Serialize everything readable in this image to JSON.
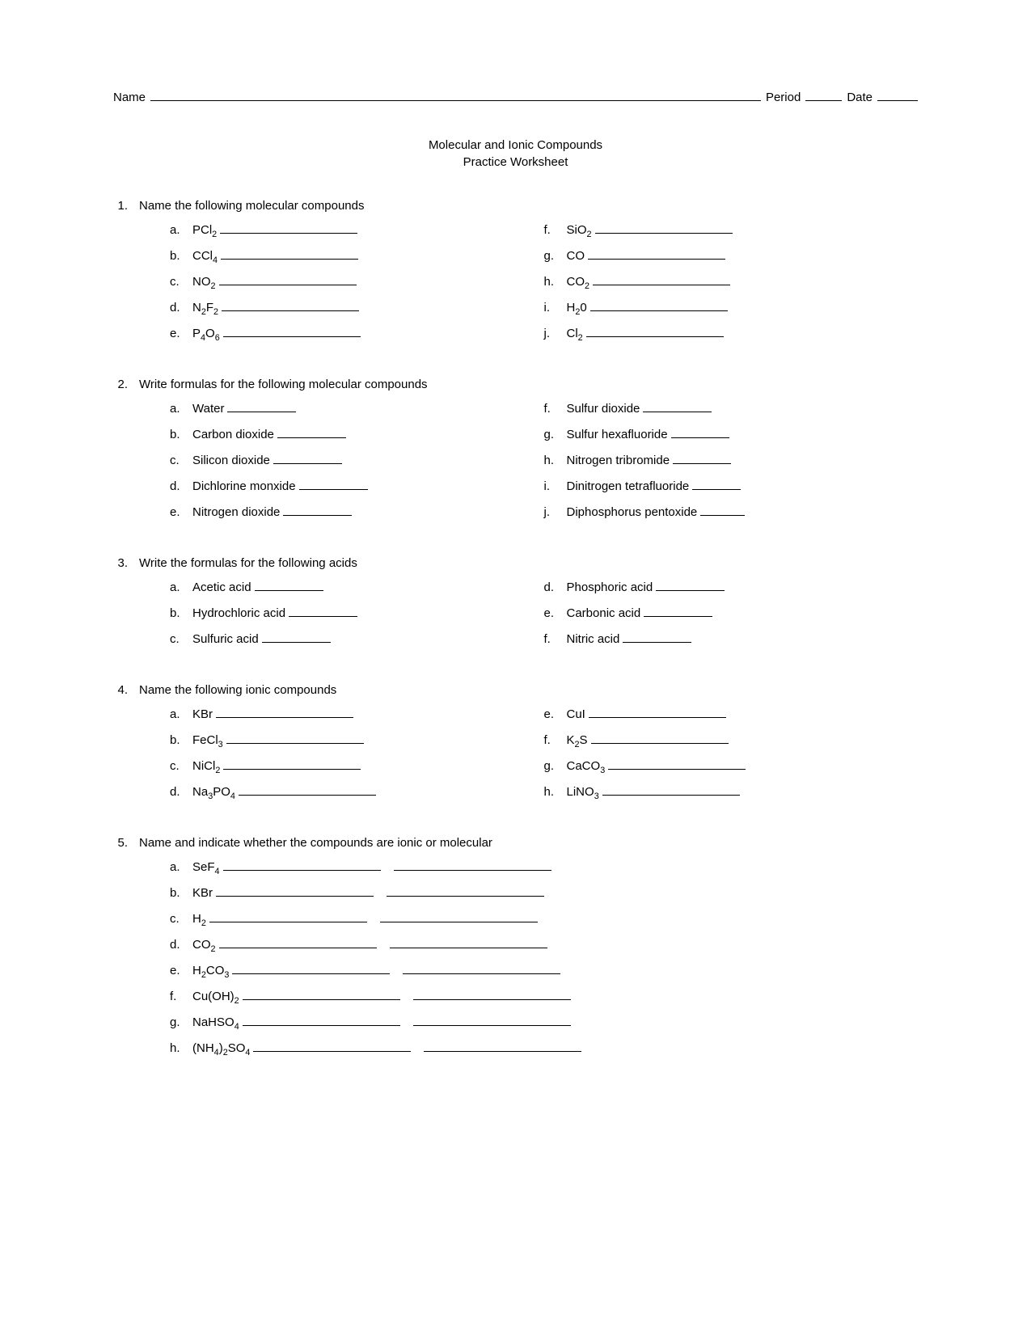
{
  "header": {
    "name_label": "Name",
    "period_label": "Period",
    "date_label": "Date"
  },
  "title": {
    "line1": "Molecular and Ionic Compounds",
    "line2": "Practice Worksheet"
  },
  "questions": [
    {
      "num": "1.",
      "prompt": "Name the following molecular compounds",
      "blank_width": 170,
      "left": [
        {
          "letter": "a.",
          "label": "PCl",
          "sub": "2"
        },
        {
          "letter": "b.",
          "label": "CCl",
          "sub": "4"
        },
        {
          "letter": "c.",
          "label": "NO",
          "sub": "2"
        },
        {
          "letter": "d.",
          "label": "N",
          "sub": "2",
          "label2": "F",
          "sub2": "2"
        },
        {
          "letter": "e.",
          "label": "P",
          "sub": "4",
          "label2": "O",
          "sub2": "6"
        }
      ],
      "right": [
        {
          "letter": "f.",
          "label": "SiO",
          "sub": "2"
        },
        {
          "letter": "g.",
          "label": "CO"
        },
        {
          "letter": "h.",
          "label": "CO",
          "sub": "2"
        },
        {
          "letter": "i.",
          "label": "H",
          "sub": "2",
          "label2": "0"
        },
        {
          "letter": "j.",
          "label": "Cl",
          "sub": "2"
        }
      ]
    },
    {
      "num": "2.",
      "prompt": "Write formulas for the following molecular compounds",
      "blank_width": 85,
      "left": [
        {
          "letter": "a.",
          "text": "Water"
        },
        {
          "letter": "b.",
          "text": "Carbon dioxide"
        },
        {
          "letter": "c.",
          "text": "Silicon dioxide"
        },
        {
          "letter": "d.",
          "text": "Dichlorine monxide"
        },
        {
          "letter": "e.",
          "text": "Nitrogen dioxide"
        }
      ],
      "right": [
        {
          "letter": "f.",
          "text": "Sulfur dioxide",
          "bw": 85
        },
        {
          "letter": "g.",
          "text": "Sulfur hexafluoride",
          "bw": 72
        },
        {
          "letter": "h.",
          "text": "Nitrogen tribromide",
          "bw": 72
        },
        {
          "letter": "i.",
          "text": "Dinitrogen tetrafluoride",
          "bw": 60
        },
        {
          "letter": "j.",
          "text": "Diphosphorus pentoxide",
          "bw": 55
        }
      ]
    },
    {
      "num": "3.",
      "prompt": "Write the formulas for the following acids",
      "blank_width": 85,
      "left": [
        {
          "letter": "a.",
          "text": "Acetic acid"
        },
        {
          "letter": "b.",
          "text": "Hydrochloric acid"
        },
        {
          "letter": "c.",
          "text": "Sulfuric acid"
        }
      ],
      "right": [
        {
          "letter": "d.",
          "text": "Phosphoric acid"
        },
        {
          "letter": "e.",
          "text": "Carbonic acid"
        },
        {
          "letter": "f.",
          "text": "Nitric acid"
        }
      ]
    },
    {
      "num": "4.",
      "prompt": "Name the following ionic compounds",
      "blank_width": 170,
      "left": [
        {
          "letter": "a.",
          "label": "KBr"
        },
        {
          "letter": "b.",
          "label": "FeCl",
          "sub": "3"
        },
        {
          "letter": "c.",
          "label": "NiCl",
          "sub": "2"
        },
        {
          "letter": "d.",
          "label": "Na",
          "sub": "3",
          "label2": "PO",
          "sub2": "4"
        }
      ],
      "right": [
        {
          "letter": "e.",
          "label": "CuI"
        },
        {
          "letter": "f.",
          "label": "K",
          "sub": "2",
          "label2": "S"
        },
        {
          "letter": "g.",
          "label": "CaCO",
          "sub": "3"
        },
        {
          "letter": "h.",
          "label": "LiNO",
          "sub": "3"
        }
      ]
    }
  ],
  "q5": {
    "num": "5.",
    "prompt": "Name and indicate whether the compounds are ionic or molecular",
    "items": [
      {
        "letter": "a.",
        "formula": [
          {
            "t": "SeF"
          },
          {
            "s": "4"
          }
        ]
      },
      {
        "letter": "b.",
        "formula": [
          {
            "t": "KBr"
          }
        ]
      },
      {
        "letter": "c.",
        "formula": [
          {
            "t": "H"
          },
          {
            "s": "2"
          }
        ]
      },
      {
        "letter": "d.",
        "formula": [
          {
            "t": "CO"
          },
          {
            "s": "2"
          }
        ]
      },
      {
        "letter": "e.",
        "formula": [
          {
            "t": "H"
          },
          {
            "s": "2"
          },
          {
            "t": "CO"
          },
          {
            "s": "3"
          }
        ]
      },
      {
        "letter": "f.",
        "formula": [
          {
            "t": "Cu(OH)"
          },
          {
            "s": "2"
          }
        ]
      },
      {
        "letter": "g.",
        "formula": [
          {
            "t": "NaHSO"
          },
          {
            "s": "4"
          }
        ]
      },
      {
        "letter": "h.",
        "formula": [
          {
            "t": "(NH"
          },
          {
            "s": "4"
          },
          {
            "t": ")"
          },
          {
            "s": "2"
          },
          {
            "t": "SO"
          },
          {
            "s": "4"
          }
        ]
      }
    ]
  },
  "colors": {
    "text": "#000000",
    "background": "#ffffff"
  },
  "typography": {
    "font_family": "Arial",
    "font_size_pt": 11
  }
}
